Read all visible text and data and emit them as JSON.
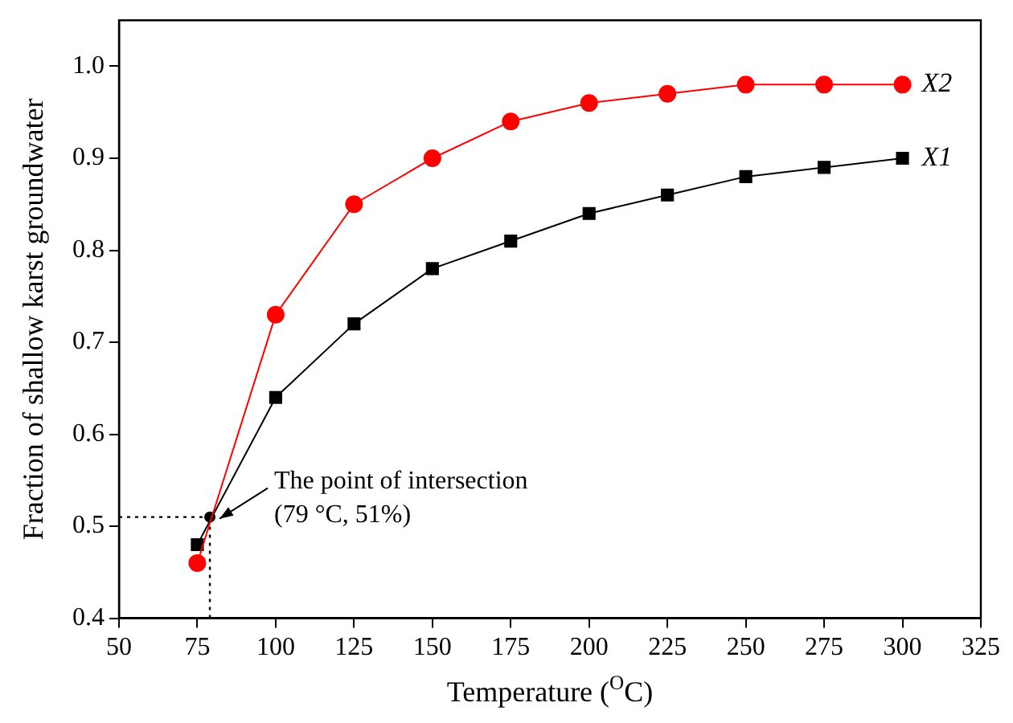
{
  "chart_data": {
    "type": "line",
    "xlabel": "Temperature ($^{O}$C)",
    "ylabel": "Fraction of shallow karst groundwater",
    "x": [
      75,
      100,
      125,
      150,
      175,
      200,
      225,
      250,
      275,
      300
    ],
    "series": [
      {
        "name": "X2",
        "color": "#ff0000",
        "marker": "circle",
        "values": [
          0.46,
          0.73,
          0.85,
          0.9,
          0.94,
          0.96,
          0.97,
          0.98,
          0.98,
          0.98
        ]
      },
      {
        "name": "X1",
        "color": "#000000",
        "marker": "square",
        "values": [
          0.48,
          0.64,
          0.72,
          0.78,
          0.81,
          0.84,
          0.86,
          0.88,
          0.89,
          0.9
        ]
      },
      {
        "type": "scatter",
        "color": "#000000",
        "marker": "circle",
        "x": [
          79
        ],
        "values": [
          0.51
        ]
      }
    ],
    "xlim": [
      50,
      325
    ],
    "xticks": [
      50,
      75,
      100,
      125,
      150,
      175,
      200,
      225,
      250,
      275,
      300,
      325
    ],
    "ylim": [
      0.4,
      1.05
    ],
    "yticks": [
      0.4,
      0.5,
      0.6,
      0.7,
      0.8,
      0.9,
      {
        "value": 1,
        "label": "1.0"
      }
    ],
    "ref_lines": [
      {
        "axis": "x",
        "value": 79,
        "line_style": "dotted",
        "color": "#000000"
      },
      {
        "axis": "y",
        "value": 0.51,
        "line_style": "dotted",
        "color": "#000000"
      }
    ],
    "annotations": [
      {
        "text": "The point of intersection\n(79 °C, 51%)",
        "x": 79,
        "y": 0.51
      }
    ],
    "grid": false,
    "legend": false,
    "line_style": "solid"
  }
}
